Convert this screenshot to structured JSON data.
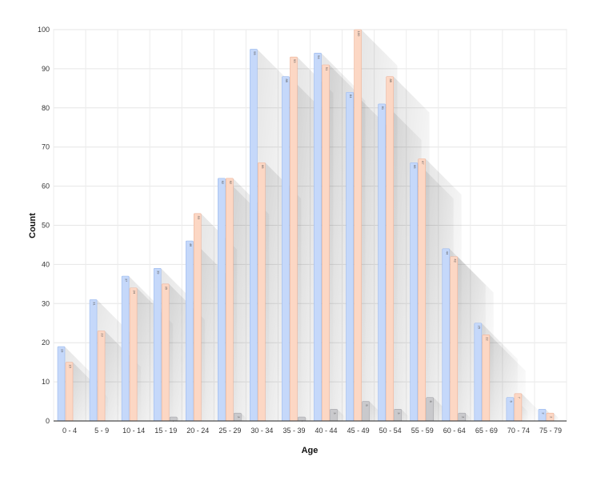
{
  "chart_data": {
    "type": "bar",
    "title": "",
    "xlabel": "Age",
    "ylabel": "Count",
    "ylim": [
      0,
      100
    ],
    "yticks": [
      0,
      10,
      20,
      30,
      40,
      50,
      60,
      70,
      80,
      90,
      100
    ],
    "grid": true,
    "legend": "none",
    "categories": [
      "0 - 4",
      "5 - 9",
      "10 - 14",
      "15 - 19",
      "20 - 24",
      "25 - 29",
      "30 - 34",
      "35 - 39",
      "40 - 44",
      "45 - 49",
      "50 - 54",
      "55 - 59",
      "60 - 64",
      "65 - 69",
      "70 - 74",
      "75 - 79"
    ],
    "series": [
      {
        "color": "#c5d8fa",
        "stroke": "#9ab9ee",
        "values": [
          19,
          31,
          37,
          39,
          46,
          62,
          95,
          88,
          94,
          84,
          81,
          66,
          44,
          25,
          6,
          3
        ]
      },
      {
        "color": "#fcd7c4",
        "stroke": "#eeb39a",
        "values": [
          15,
          23,
          34,
          35,
          53,
          62,
          66,
          93,
          91,
          100,
          88,
          67,
          42,
          22,
          7,
          2
        ]
      },
      {
        "color": "#c9c9cc",
        "stroke": "#a8a8ad",
        "values": [
          0,
          0,
          0,
          1,
          0,
          2,
          0,
          1,
          3,
          5,
          3,
          6,
          2,
          0,
          0,
          0
        ]
      }
    ]
  }
}
